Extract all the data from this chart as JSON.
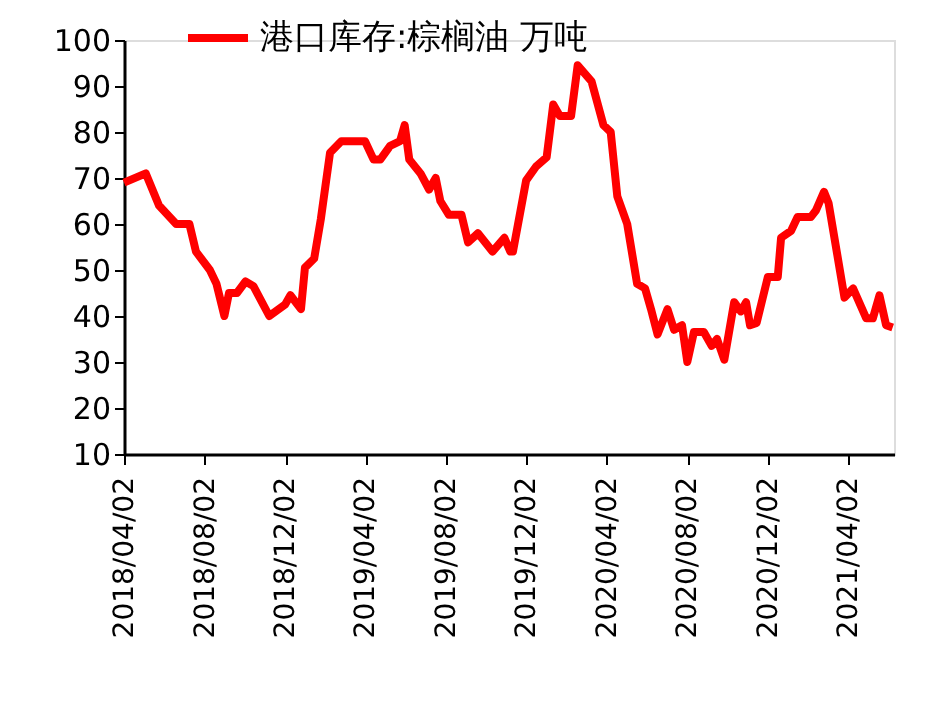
{
  "chart_data": {
    "type": "line",
    "x": [
      "2018-04-02",
      "2018-05-05",
      "2018-05-25",
      "2018-06-20",
      "2018-07-10",
      "2018-07-20",
      "2018-08-10",
      "2018-08-20",
      "2018-09-01",
      "2018-09-08",
      "2018-09-20",
      "2018-10-03",
      "2018-10-15",
      "2018-11-08",
      "2018-12-02",
      "2018-12-10",
      "2018-12-26",
      "2019-01-01",
      "2019-01-15",
      "2019-01-25",
      "2019-02-08",
      "2019-02-25",
      "2019-03-12",
      "2019-04-02",
      "2019-04-15",
      "2019-04-25",
      "2019-05-10",
      "2019-05-25",
      "2019-06-01",
      "2019-06-08",
      "2019-06-25",
      "2019-07-08",
      "2019-07-18",
      "2019-07-25",
      "2019-08-07",
      "2019-08-26",
      "2019-09-05",
      "2019-09-20",
      "2019-10-12",
      "2019-10-30",
      "2019-11-08",
      "2019-11-12",
      "2019-12-02",
      "2019-12-17",
      "2020-01-02",
      "2020-01-12",
      "2020-01-22",
      "2020-02-08",
      "2020-02-18",
      "2020-03-10",
      "2020-03-28",
      "2020-04-08",
      "2020-04-18",
      "2020-05-03",
      "2020-05-18",
      "2020-05-30",
      "2020-06-08",
      "2020-06-18",
      "2020-07-03",
      "2020-07-13",
      "2020-07-25",
      "2020-08-02",
      "2020-08-12",
      "2020-08-27",
      "2020-09-08",
      "2020-09-16",
      "2020-09-27",
      "2020-10-12",
      "2020-10-22",
      "2020-10-30",
      "2020-11-05",
      "2020-11-15",
      "2020-12-02",
      "2020-12-17",
      "2020-12-22",
      "2021-01-06",
      "2021-01-16",
      "2021-02-05",
      "2021-02-13",
      "2021-02-25",
      "2021-03-04",
      "2021-03-28",
      "2021-04-10",
      "2021-04-30",
      "2021-05-10",
      "2021-05-20",
      "2021-05-30",
      "2021-06-09"
    ],
    "series": [
      {
        "name": "港口库存:棕榈油 万吨",
        "color": "#ff0000",
        "values": [
          69,
          71,
          64,
          60,
          60,
          54,
          50,
          47,
          40,
          45,
          45,
          47.5,
          46.5,
          40,
          42.5,
          44.5,
          41.5,
          50.5,
          52.5,
          61,
          75.5,
          78,
          78,
          78,
          74,
          74,
          77,
          78,
          81.5,
          74,
          71,
          67.5,
          70,
          65,
          62,
          62,
          56,
          58,
          54,
          57,
          54,
          54,
          69.5,
          72.5,
          74.5,
          86,
          83.5,
          83.5,
          94.5,
          91,
          81.5,
          80,
          66,
          60,
          47,
          46,
          41.5,
          36,
          41.5,
          37,
          38,
          30,
          36.5,
          36.5,
          33.5,
          35,
          30.5,
          43,
          41,
          43,
          38,
          38.5,
          48.5,
          48.5,
          57,
          58.5,
          61.5,
          61.5,
          63,
          67,
          64.5,
          44,
          46,
          39.5,
          39.5,
          44.5,
          38,
          37.5
        ]
      }
    ],
    "xlim": [
      "2018-04-02",
      "2021-06-11"
    ],
    "xticks": [
      {
        "value": "2018-04-02",
        "label": "2018/04/02"
      },
      {
        "value": "2018-08-02",
        "label": "2018/08/02"
      },
      {
        "value": "2018-12-02",
        "label": "2018/12/02"
      },
      {
        "value": "2019-04-02",
        "label": "2019/04/02"
      },
      {
        "value": "2019-08-02",
        "label": "2019/08/02"
      },
      {
        "value": "2019-12-02",
        "label": "2019/12/02"
      },
      {
        "value": "2020-04-02",
        "label": "2020/04/02"
      },
      {
        "value": "2020-08-02",
        "label": "2020/08/02"
      },
      {
        "value": "2020-12-02",
        "label": "2020/12/02"
      },
      {
        "value": "2021-04-02",
        "label": "2021/04/02"
      }
    ],
    "ylim": [
      10,
      100
    ],
    "yticks": [
      10,
      20,
      30,
      40,
      50,
      60,
      70,
      80,
      90,
      100
    ],
    "grid": false,
    "legend": "top left",
    "marker": "none",
    "line_style": "solid"
  }
}
